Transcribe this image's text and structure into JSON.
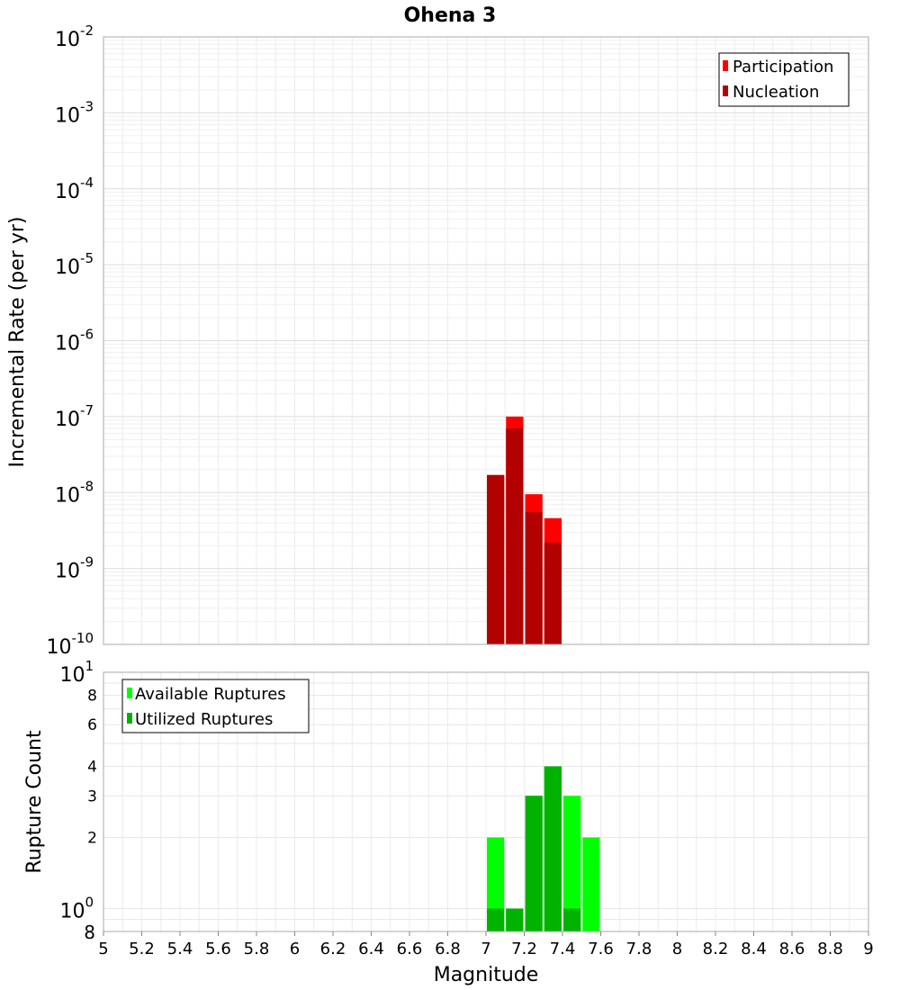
{
  "chart_data": [
    {
      "type": "bar",
      "title": "Ohena 3",
      "ylabel": "Incremental Rate (per yr)",
      "yscale": "log",
      "ylim": [
        1e-10,
        0.01
      ],
      "xlim": [
        5,
        9
      ],
      "bin_width": 0.1,
      "y_ticks": [
        {
          "base": "10",
          "exp": "-2"
        },
        {
          "base": "10",
          "exp": "-3"
        },
        {
          "base": "10",
          "exp": "-4"
        },
        {
          "base": "10",
          "exp": "-5"
        },
        {
          "base": "10",
          "exp": "-6"
        },
        {
          "base": "10",
          "exp": "-7"
        },
        {
          "base": "10",
          "exp": "-8"
        },
        {
          "base": "10",
          "exp": "-9"
        },
        {
          "base": "10",
          "exp": "-10"
        }
      ],
      "legend": {
        "position": "top-right",
        "entries": [
          "Participation",
          "Nucleation"
        ]
      },
      "grid": true,
      "series": [
        {
          "name": "Participation",
          "color": "#ff0000",
          "x": [
            7.05,
            7.15,
            7.25,
            7.35
          ],
          "values": [
            1.7e-08,
            1e-07,
            9.5e-09,
            4.6e-09
          ]
        },
        {
          "name": "Nucleation",
          "color": "#b30000",
          "x": [
            7.05,
            7.15,
            7.25,
            7.35
          ],
          "values": [
            1.7e-08,
            7e-08,
            5.5e-09,
            2.2e-09
          ]
        }
      ]
    },
    {
      "type": "bar",
      "xlabel": "Magnitude",
      "ylabel": "Rupture Count",
      "yscale": "log",
      "ylim": [
        0.8,
        10
      ],
      "xlim": [
        5,
        9
      ],
      "bin_width": 0.1,
      "x_ticks": [
        "5",
        "5.2",
        "5.4",
        "5.6",
        "5.8",
        "6",
        "6.2",
        "6.4",
        "6.6",
        "6.8",
        "7",
        "7.2",
        "7.4",
        "7.6",
        "7.8",
        "8",
        "8.2",
        "8.4",
        "8.6",
        "8.8",
        "9"
      ],
      "y_ticks_minor": [
        {
          "value": 8,
          "label": "8"
        },
        {
          "value": 6,
          "label": "6"
        },
        {
          "value": 4,
          "label": "4"
        },
        {
          "value": 3,
          "label": "3"
        },
        {
          "value": 2,
          "label": "2"
        }
      ],
      "y_ticks_major": [
        {
          "value": 10,
          "base": "10",
          "exp": "1"
        },
        {
          "value": 1,
          "base": "10",
          "exp": "0"
        }
      ],
      "y_bottom_label": "8",
      "legend": {
        "position": "top-left",
        "entries": [
          "Available Ruptures",
          "Utilized Ruptures"
        ]
      },
      "grid": true,
      "series": [
        {
          "name": "Available Ruptures",
          "color": "#00ff00",
          "x": [
            7.05,
            7.15,
            7.25,
            7.35,
            7.45,
            7.55
          ],
          "values": [
            2,
            1,
            3,
            4,
            3,
            2
          ]
        },
        {
          "name": "Utilized Ruptures",
          "color": "#00b300",
          "x": [
            7.05,
            7.15,
            7.25,
            7.35,
            7.45
          ],
          "values": [
            1,
            1,
            3,
            4,
            1
          ]
        }
      ]
    }
  ]
}
